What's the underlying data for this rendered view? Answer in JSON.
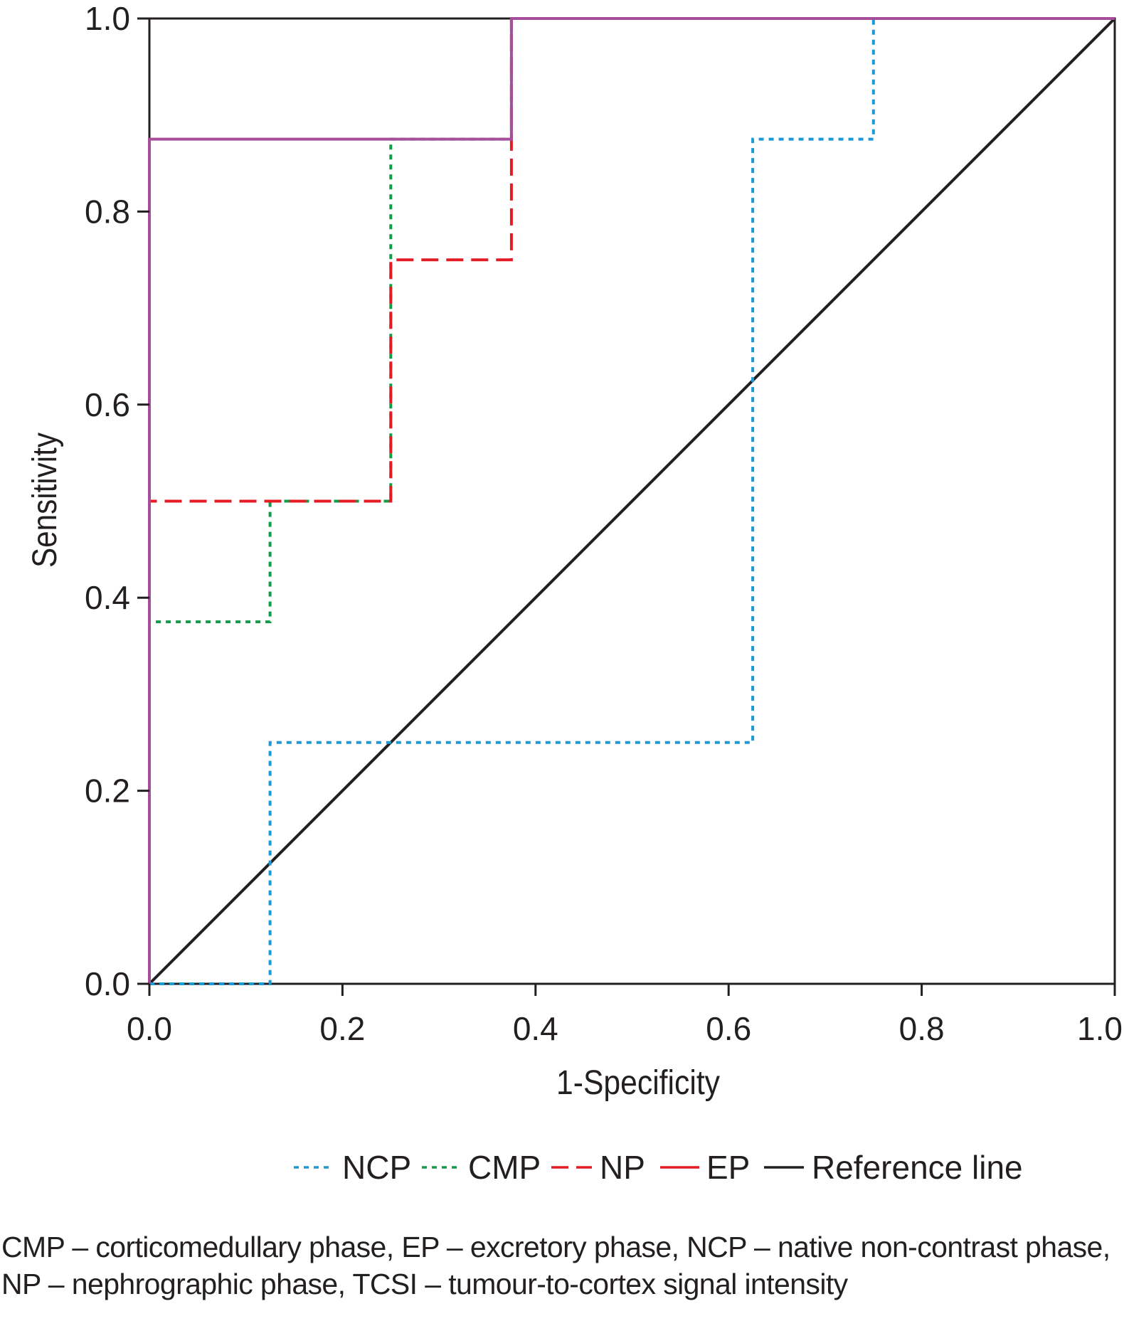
{
  "chart_data": {
    "type": "line",
    "xlabel": "1-Specificity",
    "ylabel": "Sensitivity",
    "xlim": [
      0,
      1
    ],
    "ylim": [
      0,
      1
    ],
    "xticks": [
      "0.0",
      "0.2",
      "0.4",
      "0.6",
      "0.8",
      "1.0"
    ],
    "yticks": [
      "0.0",
      "0.2",
      "0.4",
      "0.6",
      "0.8",
      "1.0"
    ],
    "grid": false,
    "legend_position": "bottom",
    "series": [
      {
        "name": "NCP",
        "color": "#1b9ad6",
        "style": "dotted",
        "x": [
          0,
          0.125,
          0.125,
          0.625,
          0.625,
          0.75,
          0.75,
          1
        ],
        "y": [
          0,
          0,
          0.25,
          0.25,
          0.875,
          0.875,
          1,
          1
        ]
      },
      {
        "name": "CMP",
        "color": "#0f9d48",
        "style": "dotted",
        "x": [
          0,
          0,
          0.125,
          0.125,
          0.25,
          0.25,
          0.375,
          0.375,
          1
        ],
        "y": [
          0,
          0.375,
          0.375,
          0.5,
          0.5,
          0.875,
          0.875,
          1,
          1
        ]
      },
      {
        "name": "NP",
        "color": "#e31b23",
        "style": "dashed",
        "x": [
          0,
          0,
          0.25,
          0.25,
          0.375,
          0.375,
          1
        ],
        "y": [
          0,
          0.5,
          0.5,
          0.75,
          0.75,
          1,
          1
        ]
      },
      {
        "name": "EP",
        "color": "#a64d9c",
        "legend_color": "#e31b23",
        "style": "solid",
        "x": [
          0,
          0,
          0.375,
          0.375,
          1
        ],
        "y": [
          0,
          0.875,
          0.875,
          1,
          1
        ]
      },
      {
        "name": "Reference line",
        "color": "#231f20",
        "style": "solid",
        "x": [
          0,
          1
        ],
        "y": [
          0,
          1
        ]
      }
    ]
  },
  "caption": {
    "line1": "CMP – corticomedullary phase, EP – excretory phase, NCP – native non-contrast phase,",
    "line2": "NP – nephrographic phase, TCSI – tumour-to-cortex signal intensity"
  }
}
